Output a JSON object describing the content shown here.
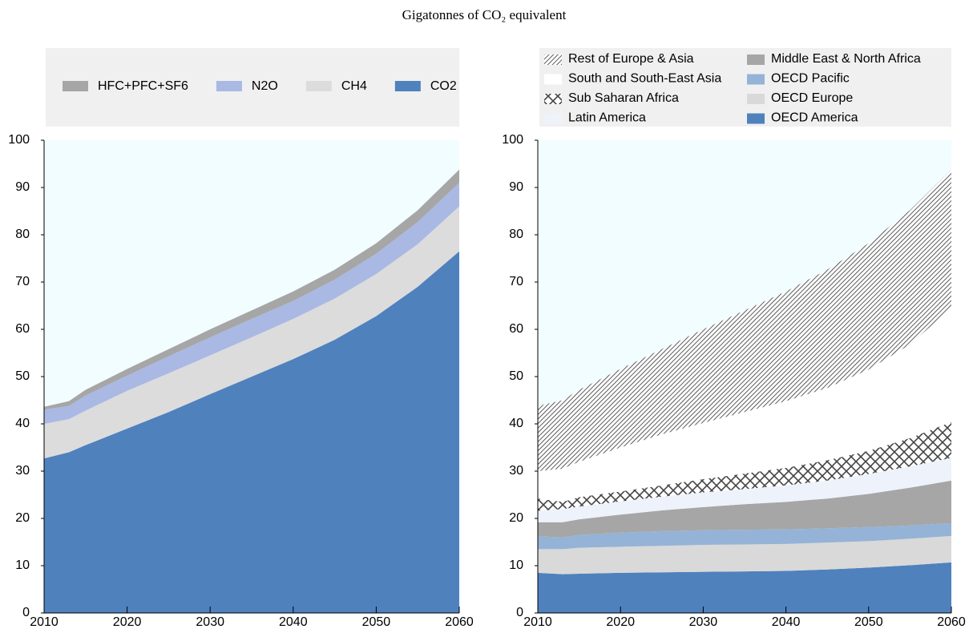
{
  "title": "Gigatonnes of CO₂ equivalent",
  "chart_data": [
    {
      "type": "stacked-area",
      "legend_columns": 4,
      "x": [
        2010,
        2013,
        2015,
        2020,
        2025,
        2030,
        2035,
        2040,
        2045,
        2050,
        2055,
        2060
      ],
      "xlim": [
        2010,
        2060
      ],
      "xticks": [
        2010,
        2020,
        2030,
        2040,
        2050,
        2060
      ],
      "ylim": [
        0,
        100
      ],
      "yticks": [
        0,
        10,
        20,
        30,
        40,
        50,
        60,
        70,
        80,
        90,
        100
      ],
      "series": [
        {
          "name": "CO2",
          "color": "#4f81bd",
          "values": [
            32.7,
            34,
            35.5,
            39,
            42.5,
            46.3,
            50,
            53.7,
            57.8,
            62.8,
            69,
            76.5
          ]
        },
        {
          "name": "CH4",
          "color": "#dcdcdc",
          "values": [
            7.3,
            7,
            7.3,
            8,
            8.2,
            8.2,
            8.3,
            8.5,
            8.7,
            8.9,
            9,
            9.5
          ]
        },
        {
          "name": "N2O",
          "color": "#a9b9e3",
          "values": [
            3,
            2.8,
            3.2,
            3.2,
            3.6,
            3.8,
            3.9,
            3.8,
            4,
            4.3,
            4.7,
            5
          ]
        },
        {
          "name": "HFC+PFC+SF6",
          "color": "#a6a6a6",
          "values": [
            0.6,
            1,
            1.2,
            1.4,
            1.5,
            1.7,
            1.8,
            2,
            2.1,
            2.2,
            2.5,
            2.8
          ]
        }
      ]
    },
    {
      "type": "stacked-area",
      "legend_columns": 2,
      "x": [
        2010,
        2013,
        2015,
        2020,
        2025,
        2030,
        2035,
        2040,
        2045,
        2050,
        2055,
        2060
      ],
      "xlim": [
        2010,
        2060
      ],
      "xticks": [
        2010,
        2020,
        2030,
        2040,
        2050,
        2060
      ],
      "ylim": [
        0,
        100
      ],
      "yticks": [
        0,
        10,
        20,
        30,
        40,
        50,
        60,
        70,
        80,
        90,
        100
      ],
      "series": [
        {
          "name": "OECD America",
          "color": "#4f81bd",
          "values": [
            8.5,
            8.2,
            8.3,
            8.5,
            8.6,
            8.7,
            8.8,
            8.9,
            9.2,
            9.6,
            10.1,
            10.7
          ]
        },
        {
          "name": "OECD Europe",
          "color": "#d9d9d9",
          "values": [
            5,
            5.3,
            5.5,
            5.5,
            5.6,
            5.7,
            5.7,
            5.7,
            5.7,
            5.6,
            5.6,
            5.6
          ]
        },
        {
          "name": "OECD Pacific",
          "color": "#95b3d7",
          "values": [
            2.7,
            2.5,
            2.7,
            3,
            3.1,
            3.1,
            3.1,
            3.1,
            3,
            3,
            2.8,
            2.7
          ]
        },
        {
          "name": "Middle East & North Africa",
          "color": "#a6a6a6",
          "values": [
            3,
            3.2,
            3.3,
            3.8,
            4.4,
            4.9,
            5.4,
            5.8,
            6.3,
            7,
            8,
            9
          ]
        },
        {
          "name": "Latin America",
          "color": "#eef2fa",
          "values": [
            2.4,
            2.8,
            2.7,
            2.8,
            2.9,
            3.1,
            3.2,
            3.5,
            3.8,
            4.2,
            4.5,
            4.8
          ]
        },
        {
          "name": "Sub Saharan Africa",
          "color": "#444444",
          "pattern": "cross",
          "values": [
            2.6,
            1.5,
            2,
            2.1,
            2.4,
            2.8,
            3.3,
            3.7,
            4.3,
            4.9,
            6,
            7.6
          ]
        },
        {
          "name": "South and South-East Asia",
          "color": "#ffffff",
          "values": [
            5.8,
            7,
            7.5,
            9.3,
            10.8,
            11.9,
            13,
            14.1,
            15.3,
            17.2,
            19.8,
            24.1
          ]
        },
        {
          "name": "Rest of Europe & Asia",
          "color": "#333333",
          "pattern": "diagonal",
          "values": [
            13.8,
            14.5,
            15.2,
            16.6,
            18,
            19.8,
            21.5,
            23.2,
            25,
            26.7,
            28.4,
            29.3
          ]
        }
      ]
    }
  ]
}
